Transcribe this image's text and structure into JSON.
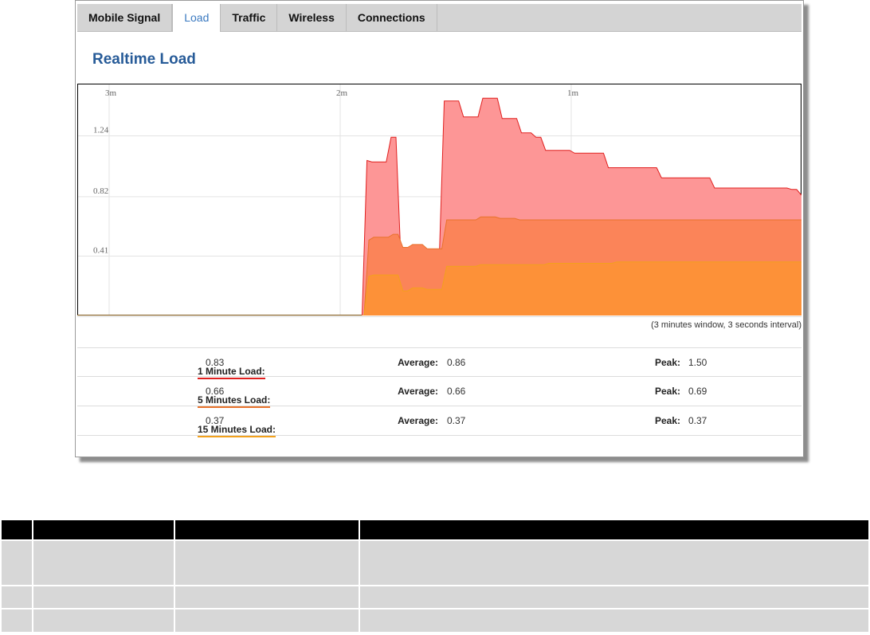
{
  "tabs": [
    {
      "label": "Mobile Signal",
      "active": false
    },
    {
      "label": "Load",
      "active": true
    },
    {
      "label": "Traffic",
      "active": false
    },
    {
      "label": "Wireless",
      "active": false
    },
    {
      "label": "Connections",
      "active": false
    }
  ],
  "title": "Realtime Load",
  "chart_note": "(3 minutes window, 3 seconds interval)",
  "chart_data": {
    "type": "area",
    "x_ticks": [
      "3m",
      "2m",
      "1m"
    ],
    "y_ticks": [
      "1.24",
      "0.82",
      "0.41"
    ],
    "grid": true,
    "series": [
      {
        "name": "1 Minute Load",
        "color": "#e0201f",
        "fill": "#fd9696",
        "values": [
          0,
          0,
          0,
          0,
          0,
          0,
          0,
          0,
          0,
          0,
          0,
          0,
          0,
          0,
          0,
          0,
          0,
          0,
          0,
          0,
          0,
          0,
          0,
          0,
          0,
          0,
          0,
          0,
          0,
          0,
          0,
          0,
          0,
          0,
          0,
          0,
          0,
          0,
          0,
          0,
          0,
          0,
          0,
          0,
          0,
          0,
          0,
          0,
          0,
          0,
          0,
          0,
          0,
          0,
          0,
          0,
          0,
          0,
          0,
          0,
          1.07,
          1.06,
          1.06,
          1.06,
          1.06,
          1.23,
          1.23,
          0.41,
          0.41,
          0.46,
          0.46,
          0.46,
          0.42,
          0.42,
          0.42,
          0.42,
          1.48,
          1.48,
          1.48,
          1.48,
          1.37,
          1.37,
          1.37,
          1.37,
          1.5,
          1.5,
          1.5,
          1.5,
          1.36,
          1.36,
          1.36,
          1.36,
          1.26,
          1.26,
          1.26,
          1.23,
          1.23,
          1.14,
          1.14,
          1.14,
          1.14,
          1.14,
          1.14,
          1.12,
          1.12,
          1.12,
          1.12,
          1.12,
          1.12,
          1.12,
          1.02,
          1.02,
          1.02,
          1.02,
          1.02,
          1.02,
          1.02,
          1.02,
          1.02,
          1.02,
          1.02,
          0.95,
          0.95,
          0.95,
          0.95,
          0.95,
          0.95,
          0.95,
          0.95,
          0.95,
          0.95,
          0.95,
          0.88,
          0.88,
          0.88,
          0.88,
          0.88,
          0.88,
          0.88,
          0.88,
          0.88,
          0.88,
          0.88,
          0.88,
          0.88,
          0.88,
          0.88,
          0.88,
          0.87,
          0.87,
          0.83
        ]
      },
      {
        "name": "5 Minutes Load",
        "color": "#e8722b",
        "fill": "#fb8459",
        "values": [
          0,
          0,
          0,
          0,
          0,
          0,
          0,
          0,
          0,
          0,
          0,
          0,
          0,
          0,
          0,
          0,
          0,
          0,
          0,
          0,
          0,
          0,
          0,
          0,
          0,
          0,
          0,
          0,
          0,
          0,
          0,
          0,
          0,
          0,
          0,
          0,
          0,
          0,
          0,
          0,
          0,
          0,
          0,
          0,
          0,
          0,
          0,
          0,
          0,
          0,
          0,
          0,
          0,
          0,
          0,
          0,
          0,
          0,
          0,
          0,
          0.52,
          0.54,
          0.54,
          0.54,
          0.54,
          0.56,
          0.56,
          0.47,
          0.47,
          0.49,
          0.49,
          0.49,
          0.46,
          0.46,
          0.46,
          0.46,
          0.66,
          0.66,
          0.66,
          0.66,
          0.66,
          0.66,
          0.66,
          0.68,
          0.68,
          0.68,
          0.68,
          0.67,
          0.67,
          0.67,
          0.67,
          0.66,
          0.66,
          0.66,
          0.66,
          0.66,
          0.66,
          0.66,
          0.66,
          0.66,
          0.66,
          0.66,
          0.66,
          0.66,
          0.66,
          0.66,
          0.66,
          0.66,
          0.66,
          0.66,
          0.66,
          0.66,
          0.66,
          0.66,
          0.66,
          0.66,
          0.66,
          0.66,
          0.66,
          0.66,
          0.66,
          0.66,
          0.66,
          0.66,
          0.66,
          0.66,
          0.66,
          0.66,
          0.66,
          0.66,
          0.66,
          0.66,
          0.66,
          0.66,
          0.66,
          0.66,
          0.66,
          0.66,
          0.66,
          0.66,
          0.66,
          0.66,
          0.66,
          0.66,
          0.66,
          0.66,
          0.66,
          0.66,
          0.66,
          0.66
        ]
      },
      {
        "name": "15 Minutes Load",
        "color": "#f2a11c",
        "fill": "#fd9138",
        "values": [
          0,
          0,
          0,
          0,
          0,
          0,
          0,
          0,
          0,
          0,
          0,
          0,
          0,
          0,
          0,
          0,
          0,
          0,
          0,
          0,
          0,
          0,
          0,
          0,
          0,
          0,
          0,
          0,
          0,
          0,
          0,
          0,
          0,
          0,
          0,
          0,
          0,
          0,
          0,
          0,
          0,
          0,
          0,
          0,
          0,
          0,
          0,
          0,
          0,
          0,
          0,
          0,
          0,
          0,
          0,
          0,
          0,
          0,
          0,
          0,
          0.27,
          0.28,
          0.28,
          0.28,
          0.28,
          0.28,
          0.28,
          0.17,
          0.17,
          0.19,
          0.19,
          0.19,
          0.18,
          0.18,
          0.18,
          0.18,
          0.34,
          0.34,
          0.34,
          0.34,
          0.34,
          0.34,
          0.34,
          0.35,
          0.35,
          0.35,
          0.35,
          0.35,
          0.35,
          0.35,
          0.35,
          0.35,
          0.35,
          0.35,
          0.35,
          0.35,
          0.35,
          0.36,
          0.36,
          0.36,
          0.36,
          0.36,
          0.36,
          0.36,
          0.36,
          0.36,
          0.36,
          0.36,
          0.36,
          0.36,
          0.36,
          0.37,
          0.37,
          0.37,
          0.37,
          0.37,
          0.37,
          0.37,
          0.37,
          0.37,
          0.37,
          0.37,
          0.37,
          0.37,
          0.37,
          0.37,
          0.37,
          0.37,
          0.37,
          0.37,
          0.37,
          0.37,
          0.37,
          0.37,
          0.37,
          0.37,
          0.37,
          0.37,
          0.37,
          0.37,
          0.37,
          0.37,
          0.37,
          0.37,
          0.37,
          0.37,
          0.37,
          0.37,
          0.37,
          0.37
        ]
      }
    ],
    "ylim": [
      0,
      1.6
    ]
  },
  "stats": [
    {
      "label": "1 Minute Load:",
      "value": "0.83",
      "avg_label": "Average:",
      "avg": "0.86",
      "peak_label": "Peak:",
      "peak": "1.50"
    },
    {
      "label": "5 Minutes Load:",
      "value": "0.66",
      "avg_label": "Average:",
      "avg": "0.66",
      "peak_label": "Peak:",
      "peak": "0.69"
    },
    {
      "label": "15 Minutes Load:",
      "value": "0.37",
      "avg_label": "Average:",
      "avg": "0.37",
      "peak_label": "Peak:",
      "peak": "0.37"
    }
  ]
}
